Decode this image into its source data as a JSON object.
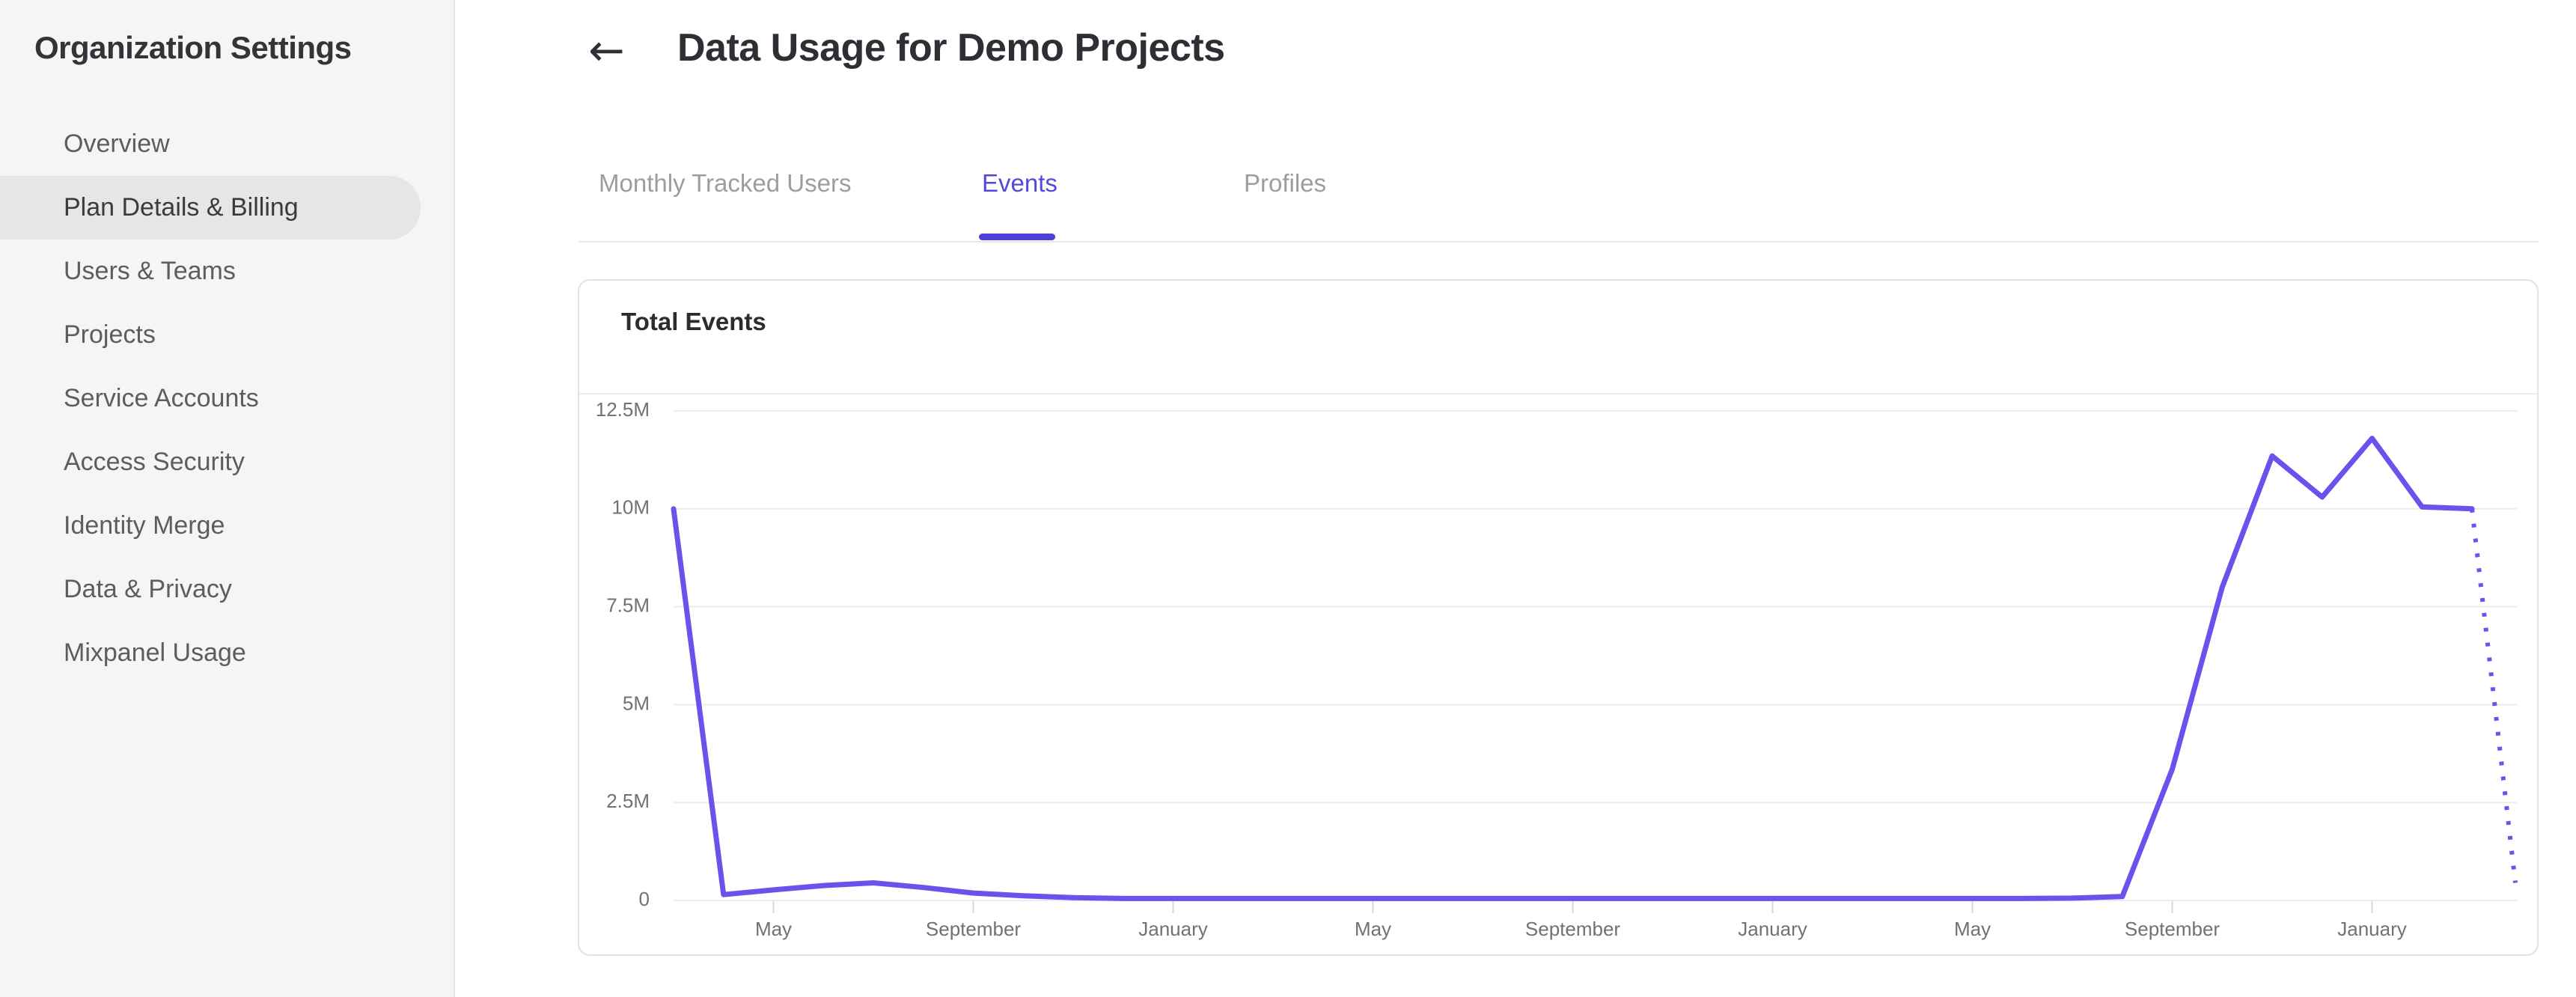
{
  "sidebar": {
    "title": "Organization Settings",
    "items": [
      {
        "label": "Overview",
        "selected": false
      },
      {
        "label": "Plan Details & Billing",
        "selected": true
      },
      {
        "label": "Users & Teams",
        "selected": false
      },
      {
        "label": "Projects",
        "selected": false
      },
      {
        "label": "Service Accounts",
        "selected": false
      },
      {
        "label": "Access Security",
        "selected": false
      },
      {
        "label": "Identity Merge",
        "selected": false
      },
      {
        "label": "Data & Privacy",
        "selected": false
      },
      {
        "label": "Mixpanel Usage",
        "selected": false
      }
    ]
  },
  "header": {
    "back_icon": "←",
    "title": "Data Usage for Demo Projects"
  },
  "tabs": [
    {
      "label": "Monthly Tracked Users",
      "active": false
    },
    {
      "label": "Events",
      "active": true
    },
    {
      "label": "Profiles",
      "active": false
    }
  ],
  "card": {
    "title": "Total Events"
  },
  "chart_data": {
    "type": "line",
    "title": "Total Events",
    "ylabel": "",
    "xlabel": "",
    "ylim": [
      0,
      12.5
    ],
    "grid": "horizontal",
    "legend": "none",
    "unit": "millions of events",
    "y_ticks": [
      {
        "value": 12.5,
        "label": "12.5M"
      },
      {
        "value": 10,
        "label": "10M"
      },
      {
        "value": 7.5,
        "label": "7.5M"
      },
      {
        "value": 5,
        "label": "5M"
      },
      {
        "value": 2.5,
        "label": "2.5M"
      },
      {
        "value": 0,
        "label": "0"
      }
    ],
    "x_ticks": [
      {
        "index": 2,
        "label": "May"
      },
      {
        "index": 6,
        "label": "September"
      },
      {
        "index": 10,
        "label": "January"
      },
      {
        "index": 14,
        "label": "May"
      },
      {
        "index": 18,
        "label": "September"
      },
      {
        "index": 22,
        "label": "January"
      },
      {
        "index": 26,
        "label": "May"
      },
      {
        "index": 30,
        "label": "September"
      },
      {
        "index": 34,
        "label": "January"
      }
    ],
    "series": [
      {
        "name": "Total Events",
        "color": "#6a53ec",
        "values_millions": [
          10,
          0.15,
          0.27,
          0.38,
          0.45,
          0.33,
          0.19,
          0.12,
          0.07,
          0.05,
          0.05,
          0.05,
          0.05,
          0.05,
          0.05,
          0.05,
          0.05,
          0.05,
          0.05,
          0.05,
          0.05,
          0.05,
          0.05,
          0.05,
          0.05,
          0.05,
          0.05,
          0.05,
          0.06,
          0.1,
          3.35,
          8.0,
          11.35,
          10.3,
          11.8,
          10.05,
          10.0
        ]
      }
    ],
    "projection": {
      "style": "dotted",
      "from_value_millions": 10.0,
      "to_value_millions": 0.45
    }
  },
  "colors": {
    "accent": "#5348d9",
    "underline": "#4c40d6",
    "line": "#6a53ec",
    "grid": "#ececec",
    "tick": "#d9d9d9",
    "axis_text": "#717176",
    "tab_inactive": "#9c9ca1",
    "sidebar_bg": "#f5f5f4",
    "pill": "#e6e6e4"
  }
}
